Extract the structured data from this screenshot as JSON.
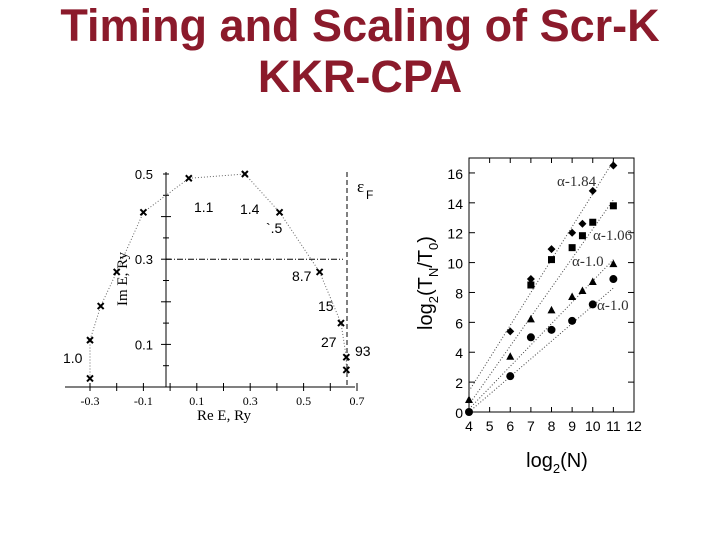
{
  "slide": {
    "title_line1": "Timing and Scaling of Scr-K",
    "title_line2": "KKR-CPA",
    "title_color": "#8b1a2b"
  },
  "chart_data": [
    {
      "type": "scatter",
      "xlabel": "Re E, Ry",
      "ylabel": "Im E, Ry",
      "xlim": [
        -0.35,
        0.72
      ],
      "ylim": [
        0.0,
        0.52
      ],
      "x_ticks": [
        "-0.3",
        "-0.1",
        "0.1",
        "0.3",
        "0.5",
        "0.7"
      ],
      "y_ticks": [
        "0.1",
        "0.3",
        "0.5"
      ],
      "fermi_label": "ε",
      "fermi_sub": "F",
      "fermi_x": 0.66,
      "dashdot_y": 0.3,
      "series": [
        {
          "marker": "x",
          "x": [
            -0.3,
            -0.3,
            -0.26,
            -0.2,
            -0.1,
            0.07,
            0.28,
            0.41,
            0.56,
            0.64,
            0.66,
            0.66
          ],
          "y": [
            0.02,
            0.11,
            0.19,
            0.27,
            0.41,
            0.49,
            0.5,
            0.41,
            0.27,
            0.15,
            0.07,
            0.04
          ]
        }
      ],
      "annotations": [
        {
          "text": "1.0",
          "x": -0.38,
          "y": 0.03
        },
        {
          "text": "1.1",
          "x": 0.07,
          "y": 0.43
        },
        {
          "text": "1.4",
          "x": 0.21,
          "y": 0.43
        },
        {
          "text": "`.5",
          "x": 0.26,
          "y": 0.38
        },
        {
          "text": "8.7",
          "x": 0.31,
          "y": 0.25
        },
        {
          "text": "15",
          "x": 0.43,
          "y": 0.14
        },
        {
          "text": "27",
          "x": 0.45,
          "y": 0.07
        },
        {
          "text": "93",
          "x": 0.68,
          "y": 0.05
        }
      ]
    },
    {
      "type": "scatter",
      "xlabel": "log2(N)",
      "ylabel": "log2(TN/T0)",
      "xlim": [
        4,
        12
      ],
      "ylim": [
        0,
        17
      ],
      "x_ticks": [
        "4",
        "5",
        "6",
        "7",
        "8",
        "9",
        "10",
        "11",
        "12"
      ],
      "y_ticks": [
        "0",
        "2",
        "4",
        "6",
        "8",
        "10",
        "12",
        "14",
        "16"
      ],
      "series": [
        {
          "name": "α-1.84",
          "marker": "diamond",
          "x": [
            6,
            7,
            8,
            9,
            9.5,
            10,
            11
          ],
          "y": [
            5.4,
            8.9,
            10.9,
            12.0,
            12.6,
            14.8,
            16.5
          ]
        },
        {
          "name": "α-1.06",
          "marker": "square",
          "x": [
            7,
            8,
            9,
            9.5,
            10,
            11
          ],
          "y": [
            8.5,
            10.2,
            11.0,
            11.8,
            12.7,
            13.8
          ]
        },
        {
          "name": "α-1.0",
          "marker": "triangle",
          "x": [
            4,
            6,
            7,
            8,
            9,
            9.5,
            10,
            11
          ],
          "y": [
            0.8,
            3.7,
            6.2,
            6.8,
            7.7,
            8.1,
            8.7,
            9.9
          ]
        },
        {
          "name": "α-1.0",
          "marker": "circle",
          "x": [
            4,
            6,
            7,
            8,
            9,
            10,
            11
          ],
          "y": [
            0.0,
            2.4,
            5.0,
            5.5,
            6.1,
            7.2,
            8.9
          ]
        }
      ],
      "legend_labels": [
        "α-1.84",
        "α-1.06",
        "α-1.0",
        "α-1.0"
      ]
    }
  ]
}
